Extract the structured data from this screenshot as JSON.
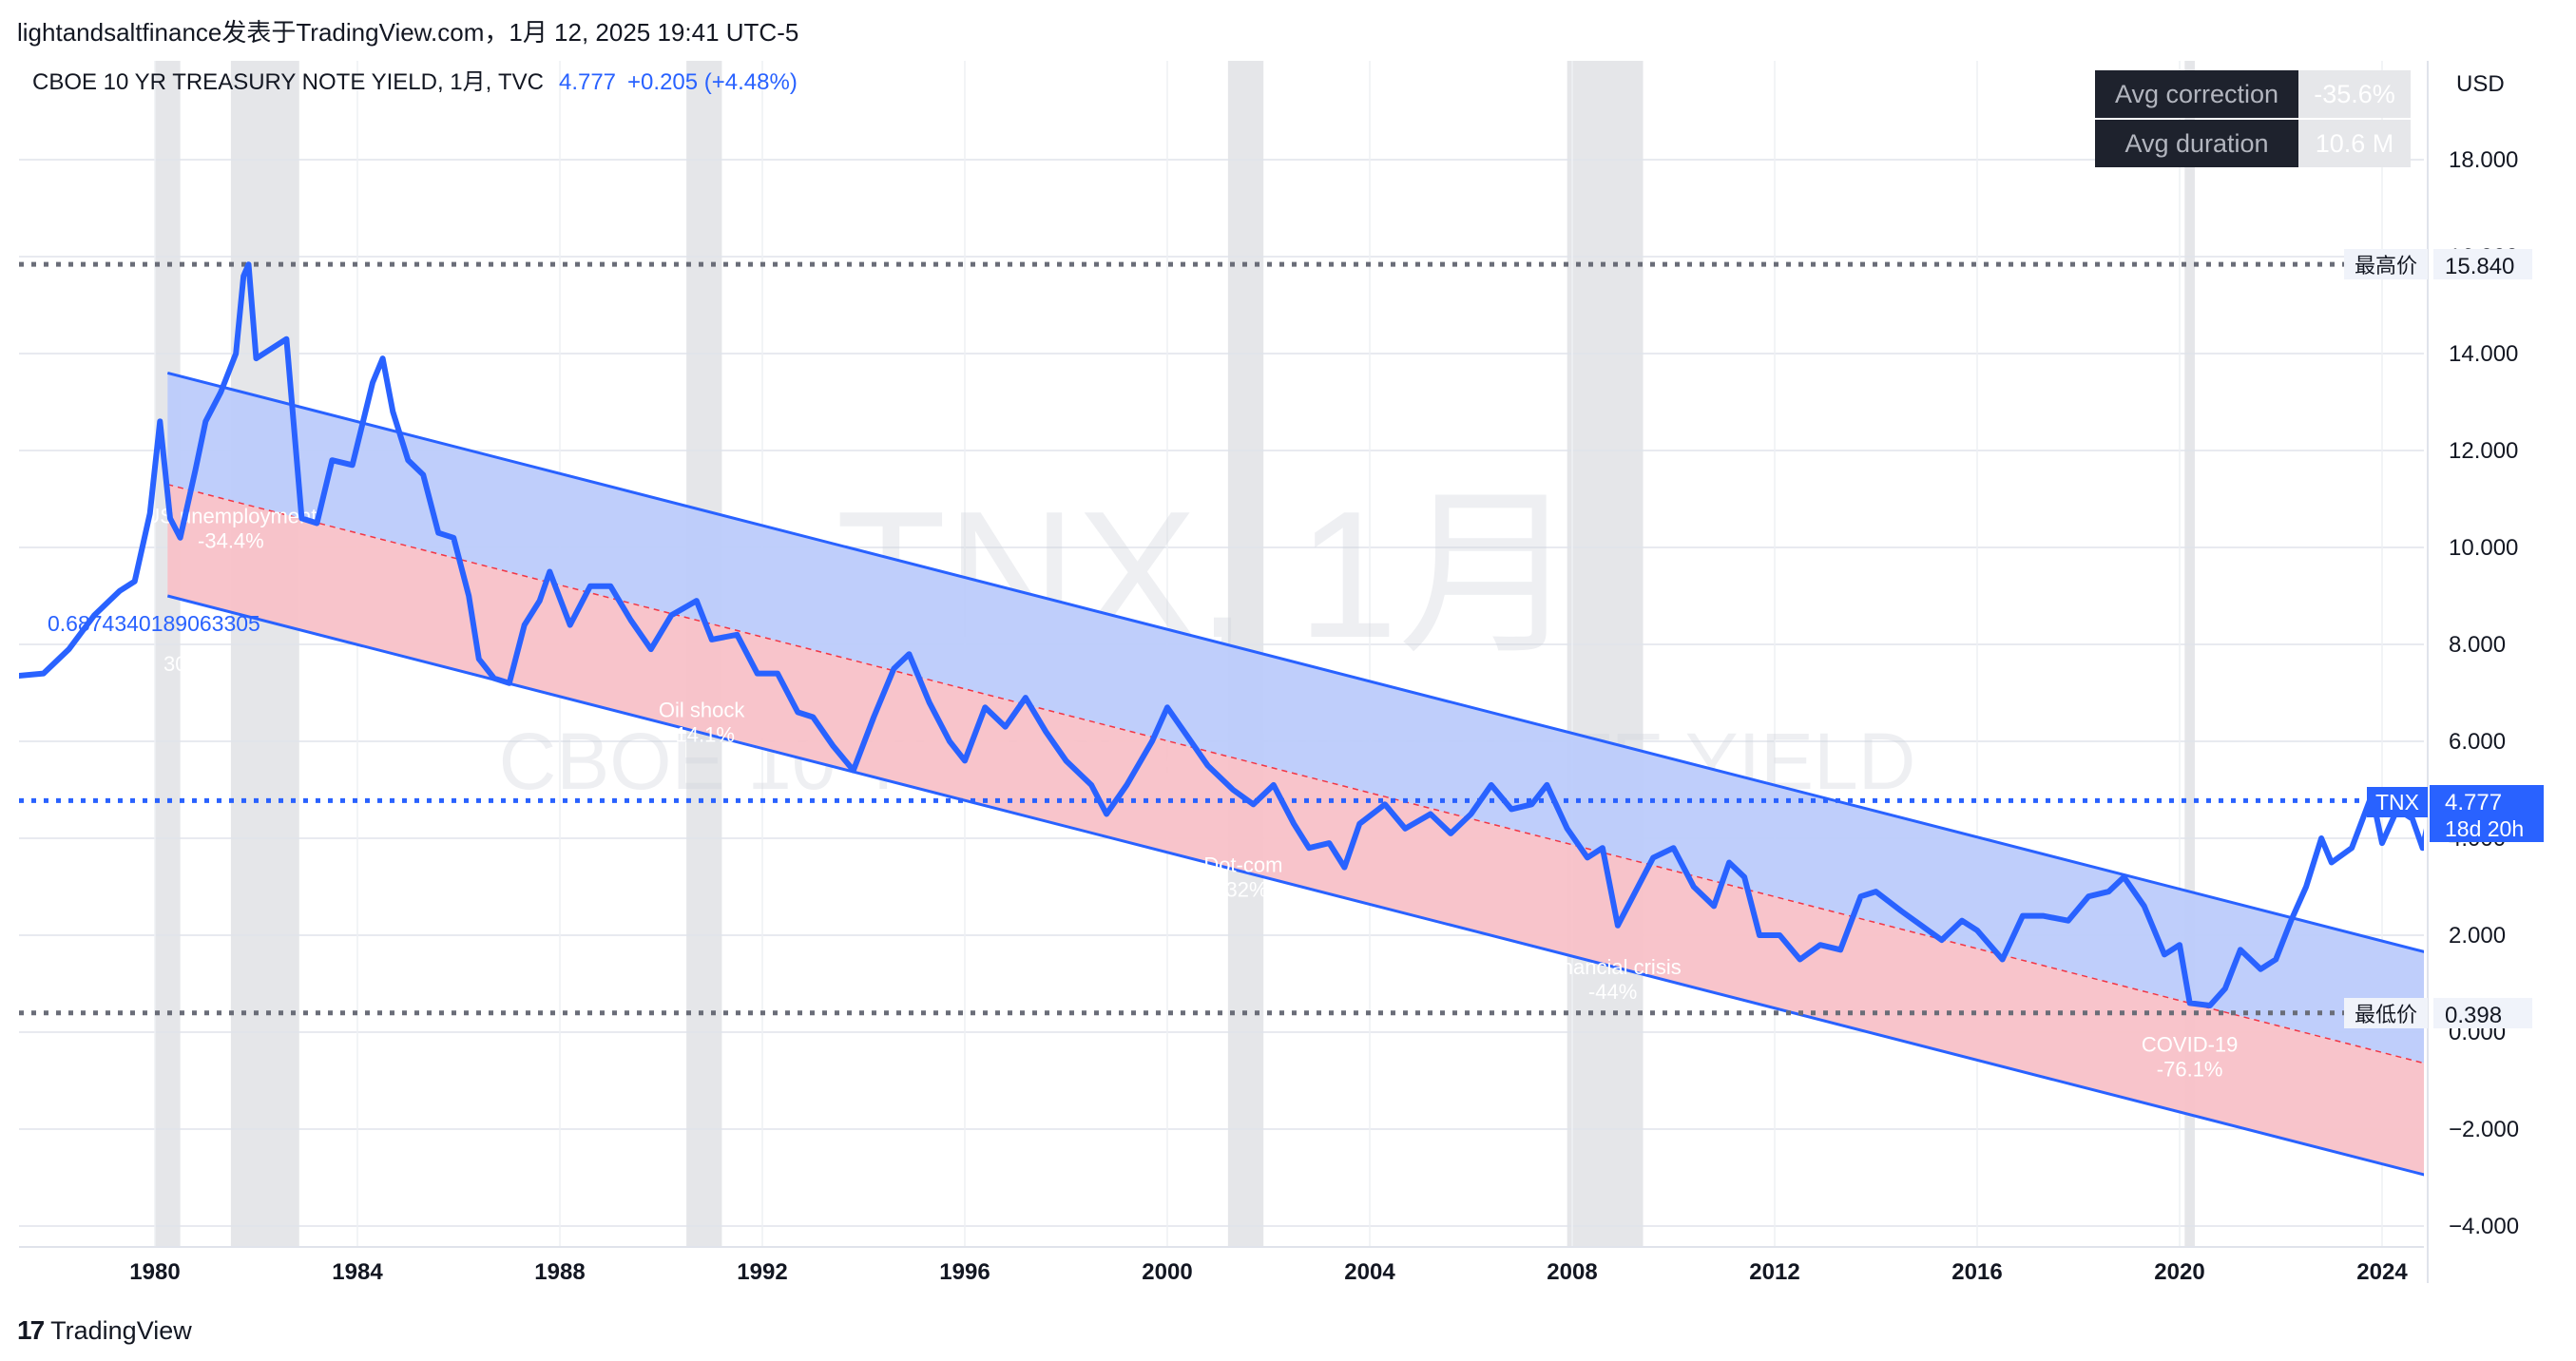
{
  "header": {
    "published_note": "lightandsaltfinance发表于TradingView.com，1月 12, 2025 19:41 UTC-5"
  },
  "footer": {
    "brand": "TradingView",
    "logo_icon": "tradingview-logo-icon"
  },
  "legend": {
    "title": "CBOE 10 YR TREASURY NOTE YIELD, 1月, TVC",
    "last": "4.777",
    "change": "+0.205 (+4.48%)"
  },
  "watermark": {
    "line1": "TNX, 1月",
    "line2": "CBOE 10 YR TREASURY NOTE YIELD"
  },
  "stats": {
    "avg_correction_label": "Avg correction",
    "avg_correction_value": "-35.6%",
    "avg_duration_label": "Avg duration",
    "avg_duration_value": "10.6 M"
  },
  "price_axis": {
    "currency": "USD",
    "high_label": "最高价",
    "high_value": "15.840",
    "low_label": "最低价",
    "low_value": "0.398",
    "last_symbol": "TNX",
    "last_value": "4.777",
    "countdown": "18d 20h"
  },
  "annotations": {
    "stray_value": "0.6874340189063305",
    "stray_value_sub": "30",
    "recessions": [
      {
        "name": "US unemployment",
        "pct": "-34.4%",
        "x": 1981.5,
        "y": 10.5
      },
      {
        "name": "Oil shock",
        "pct": "-14.1%",
        "x": 1990.8,
        "y": 6.5
      },
      {
        "name": "Dot-com",
        "pct": "-32%",
        "x": 2001.5,
        "y": 3.3
      },
      {
        "name": "Financial crisis",
        "pct": "-44%",
        "x": 2008.8,
        "y": 1.2
      },
      {
        "name": "COVID-19",
        "pct": "-76.1%",
        "x": 2020.2,
        "y": -0.4
      }
    ]
  },
  "chart_data": {
    "type": "line",
    "title": "CBOE 10 YR TREASURY NOTE YIELD, 1月, TVC",
    "xlabel": "",
    "ylabel": "USD",
    "xlim": [
      1977.3,
      2025.05
    ],
    "ylim": [
      -4.5,
      20
    ],
    "x_ticks": [
      1980,
      1984,
      1988,
      1992,
      1996,
      2000,
      2004,
      2008,
      2012,
      2016,
      2020,
      2024
    ],
    "y_ticks": [
      -4,
      -2,
      0,
      2,
      4,
      6,
      8,
      10,
      12,
      14,
      16,
      18
    ],
    "y_tick_labels": [
      "−4.000",
      "−2.000",
      "0.000",
      "2.000",
      "4.000",
      "6.000",
      "8.000",
      "10.000",
      "12.000",
      "14.000",
      "16.000",
      "18.000"
    ],
    "series": [
      {
        "name": "TNX",
        "color": "#2962ff",
        "points": [
          [
            1977.3,
            7.35
          ],
          [
            1977.8,
            7.4
          ],
          [
            1978.3,
            7.9
          ],
          [
            1978.8,
            8.6
          ],
          [
            1979.3,
            9.1
          ],
          [
            1979.6,
            9.3
          ],
          [
            1979.9,
            10.7
          ],
          [
            1980.1,
            12.6
          ],
          [
            1980.3,
            10.6
          ],
          [
            1980.5,
            10.2
          ],
          [
            1980.8,
            11.6
          ],
          [
            1981.0,
            12.6
          ],
          [
            1981.3,
            13.2
          ],
          [
            1981.6,
            14.0
          ],
          [
            1981.75,
            15.6
          ],
          [
            1981.85,
            15.84
          ],
          [
            1982.0,
            13.9
          ],
          [
            1982.3,
            14.1
          ],
          [
            1982.6,
            14.3
          ],
          [
            1982.9,
            10.6
          ],
          [
            1983.2,
            10.5
          ],
          [
            1983.5,
            11.8
          ],
          [
            1983.9,
            11.7
          ],
          [
            1984.3,
            13.4
          ],
          [
            1984.5,
            13.9
          ],
          [
            1984.7,
            12.8
          ],
          [
            1985.0,
            11.8
          ],
          [
            1985.3,
            11.5
          ],
          [
            1985.6,
            10.3
          ],
          [
            1985.9,
            10.2
          ],
          [
            1986.2,
            9.0
          ],
          [
            1986.4,
            7.7
          ],
          [
            1986.7,
            7.3
          ],
          [
            1987.0,
            7.2
          ],
          [
            1987.3,
            8.4
          ],
          [
            1987.6,
            8.9
          ],
          [
            1987.8,
            9.5
          ],
          [
            1988.2,
            8.4
          ],
          [
            1988.6,
            9.2
          ],
          [
            1989.0,
            9.2
          ],
          [
            1989.4,
            8.5
          ],
          [
            1989.8,
            7.9
          ],
          [
            1990.2,
            8.6
          ],
          [
            1990.7,
            8.9
          ],
          [
            1991.0,
            8.1
          ],
          [
            1991.5,
            8.2
          ],
          [
            1991.9,
            7.4
          ],
          [
            1992.3,
            7.4
          ],
          [
            1992.7,
            6.6
          ],
          [
            1993.0,
            6.5
          ],
          [
            1993.4,
            5.9
          ],
          [
            1993.8,
            5.4
          ],
          [
            1994.2,
            6.5
          ],
          [
            1994.6,
            7.5
          ],
          [
            1994.9,
            7.8
          ],
          [
            1995.3,
            6.8
          ],
          [
            1995.7,
            6.0
          ],
          [
            1996.0,
            5.6
          ],
          [
            1996.4,
            6.7
          ],
          [
            1996.8,
            6.3
          ],
          [
            1997.2,
            6.9
          ],
          [
            1997.6,
            6.2
          ],
          [
            1998.0,
            5.6
          ],
          [
            1998.5,
            5.1
          ],
          [
            1998.8,
            4.5
          ],
          [
            1999.2,
            5.1
          ],
          [
            1999.7,
            6.0
          ],
          [
            2000.0,
            6.7
          ],
          [
            2000.4,
            6.1
          ],
          [
            2000.8,
            5.5
          ],
          [
            2001.3,
            5.0
          ],
          [
            2001.7,
            4.7
          ],
          [
            2002.1,
            5.1
          ],
          [
            2002.5,
            4.3
          ],
          [
            2002.8,
            3.8
          ],
          [
            2003.2,
            3.9
          ],
          [
            2003.5,
            3.4
          ],
          [
            2003.8,
            4.3
          ],
          [
            2004.3,
            4.7
          ],
          [
            2004.7,
            4.2
          ],
          [
            2005.2,
            4.5
          ],
          [
            2005.6,
            4.1
          ],
          [
            2006.0,
            4.5
          ],
          [
            2006.4,
            5.1
          ],
          [
            2006.8,
            4.6
          ],
          [
            2007.2,
            4.7
          ],
          [
            2007.5,
            5.1
          ],
          [
            2007.9,
            4.2
          ],
          [
            2008.3,
            3.6
          ],
          [
            2008.6,
            3.8
          ],
          [
            2008.9,
            2.2
          ],
          [
            2009.3,
            3.0
          ],
          [
            2009.6,
            3.6
          ],
          [
            2010.0,
            3.8
          ],
          [
            2010.4,
            3.0
          ],
          [
            2010.8,
            2.6
          ],
          [
            2011.1,
            3.5
          ],
          [
            2011.4,
            3.2
          ],
          [
            2011.7,
            2.0
          ],
          [
            2012.1,
            2.0
          ],
          [
            2012.5,
            1.5
          ],
          [
            2012.9,
            1.8
          ],
          [
            2013.3,
            1.7
          ],
          [
            2013.7,
            2.8
          ],
          [
            2014.0,
            2.9
          ],
          [
            2014.5,
            2.5
          ],
          [
            2014.9,
            2.2
          ],
          [
            2015.3,
            1.9
          ],
          [
            2015.7,
            2.3
          ],
          [
            2016.0,
            2.1
          ],
          [
            2016.5,
            1.5
          ],
          [
            2016.9,
            2.4
          ],
          [
            2017.3,
            2.4
          ],
          [
            2017.8,
            2.3
          ],
          [
            2018.2,
            2.8
          ],
          [
            2018.6,
            2.9
          ],
          [
            2018.9,
            3.2
          ],
          [
            2019.3,
            2.6
          ],
          [
            2019.7,
            1.6
          ],
          [
            2020.0,
            1.8
          ],
          [
            2020.2,
            0.6
          ],
          [
            2020.6,
            0.55
          ],
          [
            2020.9,
            0.9
          ],
          [
            2021.2,
            1.7
          ],
          [
            2021.6,
            1.3
          ],
          [
            2021.9,
            1.5
          ],
          [
            2022.2,
            2.3
          ],
          [
            2022.5,
            3.0
          ],
          [
            2022.8,
            4.0
          ],
          [
            2023.0,
            3.5
          ],
          [
            2023.4,
            3.8
          ],
          [
            2023.8,
            4.9
          ],
          [
            2024.0,
            3.9
          ],
          [
            2024.3,
            4.6
          ],
          [
            2024.6,
            4.4
          ],
          [
            2024.8,
            3.8
          ],
          [
            2025.0,
            4.777
          ]
        ]
      }
    ],
    "channel": {
      "upper": [
        [
          1980.25,
          13.6
        ],
        [
          2025.05,
          1.6
        ]
      ],
      "middle": [
        [
          1980.25,
          11.3
        ],
        [
          2025.05,
          -0.7
        ]
      ],
      "lower": [
        [
          1980.25,
          9.0
        ],
        [
          2025.05,
          -3.0
        ]
      ],
      "upper_fill": "#bccbfb",
      "lower_fill": "#f8c1c8"
    },
    "horizontal_levels": [
      {
        "name": "high",
        "value": 15.84
      },
      {
        "name": "last",
        "value": 4.777
      },
      {
        "name": "low",
        "value": 0.398
      }
    ],
    "recession_bands": [
      [
        1980.0,
        1980.5
      ],
      [
        1981.5,
        1982.85
      ],
      [
        1990.5,
        1991.2
      ],
      [
        2001.2,
        2001.9
      ],
      [
        2007.9,
        2009.4
      ],
      [
        2020.1,
        2020.3
      ]
    ]
  }
}
